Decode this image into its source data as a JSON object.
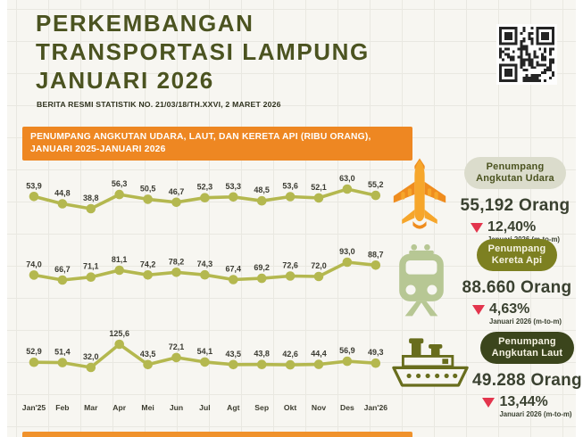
{
  "header": {
    "title_lines": [
      "PERKEMBANGAN",
      "TRANSPORTASI LAMPUNG",
      "JANUARI 2026"
    ],
    "subtitle": "BERITA RESMI STATISTIK NO. 21/03/18/TH.XXVI, 2 MARET 2026"
  },
  "banner": {
    "line1": "PENUMPANG ANGKUTAN UDARA, LAUT, DAN KERETA API (RIBU ORANG),",
    "line2": "JANUARI 2025-JANUARI 2026"
  },
  "chart_data": {
    "type": "line",
    "title": "PENUMPANG ANGKUTAN UDARA, LAUT, DAN KERETA API (RIBU ORANG), JANUARI 2025-JANUARI 2026",
    "unit": "ribu orang",
    "categories": [
      "Jan'25",
      "Feb",
      "Mar",
      "Apr",
      "Mei",
      "Jun",
      "Jul",
      "Agt",
      "Sep",
      "Okt",
      "Nov",
      "Des",
      "Jan'26"
    ],
    "series": [
      {
        "name": "Penumpang Angkutan Udara",
        "values": [
          53.9,
          44.8,
          38.8,
          56.3,
          50.5,
          46.7,
          52.3,
          53.3,
          48.5,
          53.6,
          52.1,
          63.0,
          55.2
        ],
        "labels": [
          "53,9",
          "44,8",
          "38,8",
          "56,3",
          "50,5",
          "46,7",
          "52,3",
          "53,3",
          "48,5",
          "53,6",
          "52,1",
          "63,0",
          "55,2"
        ]
      },
      {
        "name": "Penumpang Kereta Api",
        "values": [
          74.0,
          66.7,
          71.1,
          81.1,
          74.2,
          78.2,
          74.3,
          67.4,
          69.2,
          72.6,
          72.0,
          93.0,
          88.7
        ],
        "labels": [
          "74,0",
          "66,7",
          "71,1",
          "81,1",
          "74,2",
          "78,2",
          "74,3",
          "67,4",
          "69,2",
          "72,6",
          "72,0",
          "93,0",
          "88,7"
        ]
      },
      {
        "name": "Penumpang Angkutan Laut",
        "values": [
          52.9,
          51.4,
          32.0,
          125.6,
          43.5,
          72.1,
          54.1,
          43.5,
          43.8,
          42.6,
          44.4,
          56.9,
          49.3
        ],
        "labels": [
          "52,9",
          "51,4",
          "32,0",
          "125,6",
          "43,5",
          "72,1",
          "54,1",
          "43,5",
          "43,8",
          "42,6",
          "44,4",
          "56,9",
          "49,3"
        ]
      }
    ],
    "legend_position": "none",
    "grid": false,
    "line_color": "#b4b84f"
  },
  "cards": [
    {
      "icon": "airplane-icon",
      "label_line1": "Penumpang",
      "label_line2": "Angkutan Udara",
      "value": "55,192 Orang",
      "pct": "12,40%",
      "direction": "down",
      "period": "Januari 2026 (m-to-m)"
    },
    {
      "icon": "train-icon",
      "label_line1": "Penumpang",
      "label_line2": "Kereta Api",
      "value": "88.660 Orang",
      "pct": "4,63%",
      "direction": "down",
      "period": "Januari 2026 (m-to-m)"
    },
    {
      "icon": "ship-icon",
      "label_line1": "Penumpang",
      "label_line2": "Angkutan Laut",
      "value": "49.288 Orang",
      "pct": "13,44%",
      "direction": "down",
      "period": "Januari 2026 (m-to-m)"
    }
  ],
  "colors": {
    "accent_orange": "#ee8722",
    "title_green": "#4b5320",
    "line_olive": "#b4b84f",
    "pill_light_bg": "#dbdccc",
    "pill_olive_bg": "#7d8021",
    "pill_dark_bg": "#3b451c",
    "decline_red": "#e3354d",
    "plane_yellow": "#f6a62b",
    "train_sage": "#b7c794",
    "ship_olive": "#686d1d"
  }
}
